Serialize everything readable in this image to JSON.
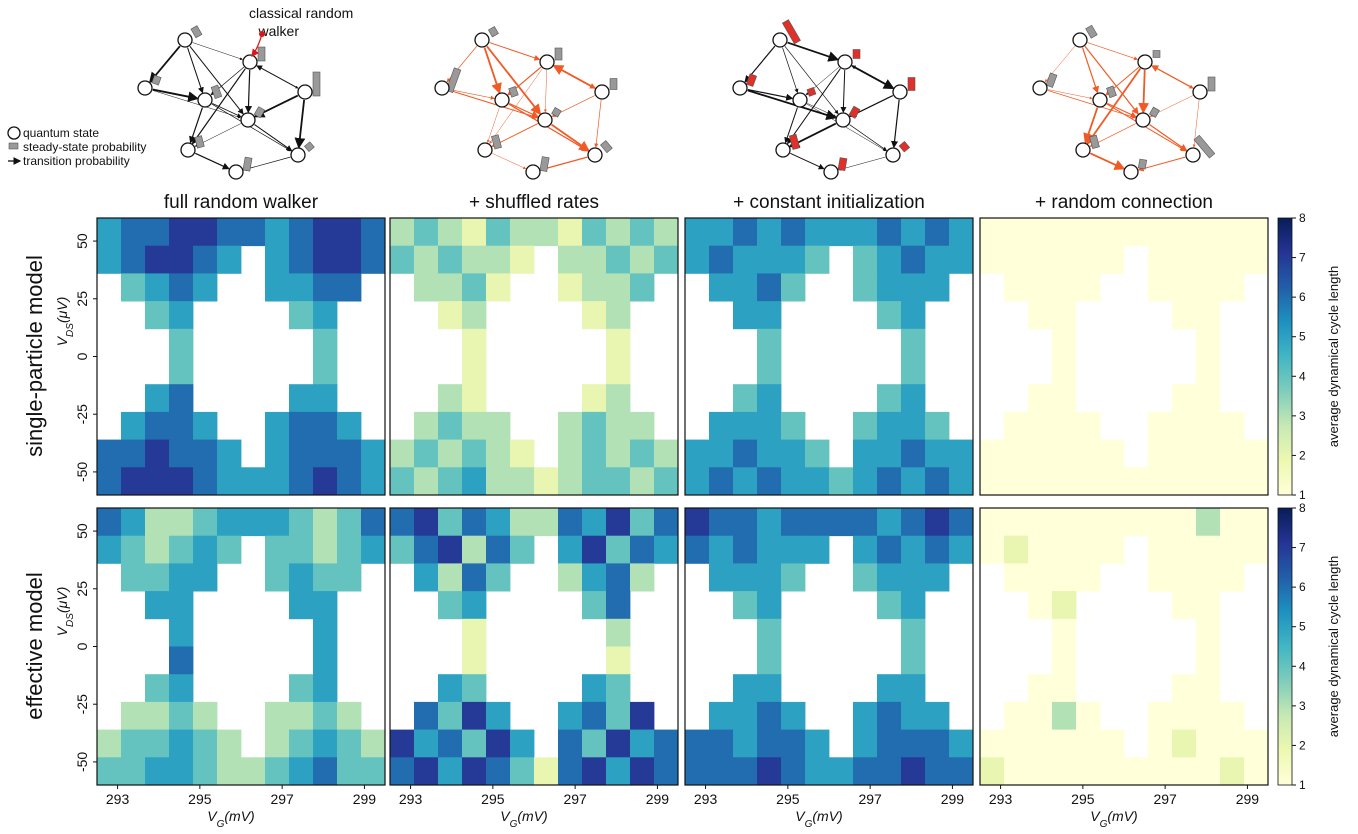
{
  "diagram": {
    "annotation": [
      "classical random",
      "walker"
    ],
    "legend": [
      "quantum state",
      "steady-state probability",
      "transition probability"
    ]
  },
  "row_labels": [
    "single-particle model",
    "effective model"
  ],
  "colorbars": [
    {
      "label": "average dynamical cycle length",
      "colormap": "YlGnBu",
      "lim": [
        1,
        8
      ],
      "ticks": [
        1,
        2,
        3,
        4,
        5,
        6,
        7,
        8
      ]
    },
    {
      "label": "average dynamical cycle length",
      "colormap": "YlGnBu",
      "lim": [
        1,
        8
      ],
      "ticks": [
        1,
        2,
        3,
        4,
        5,
        6,
        7,
        8
      ]
    }
  ],
  "chart_data": [
    {
      "type": "heatmap",
      "title": "full random walker",
      "y_label": [
        "V",
        "DS",
        "(μV)"
      ],
      "xlim": [
        292.5,
        299.5
      ],
      "ylim": [
        -60,
        60
      ],
      "yticks": [
        -50,
        -25,
        0,
        25,
        50
      ],
      "z": [
        [
          5,
          6,
          6,
          7,
          7,
          6,
          6,
          5,
          6,
          7,
          7,
          6
        ],
        [
          5,
          6,
          7,
          7,
          6,
          5,
          null,
          5,
          6,
          7,
          7,
          6
        ],
        [
          null,
          4,
          5,
          6,
          5,
          null,
          null,
          5,
          5,
          6,
          6,
          null
        ],
        [
          null,
          null,
          4,
          5,
          null,
          null,
          null,
          null,
          4,
          5,
          null,
          null
        ],
        [
          null,
          null,
          null,
          4,
          null,
          null,
          null,
          null,
          null,
          4,
          null,
          null
        ],
        [
          null,
          null,
          null,
          4,
          null,
          null,
          null,
          null,
          null,
          4,
          null,
          null
        ],
        [
          null,
          null,
          5,
          6,
          null,
          null,
          null,
          null,
          5,
          5,
          null,
          null
        ],
        [
          null,
          5,
          6,
          6,
          5,
          null,
          null,
          5,
          6,
          6,
          5,
          null
        ],
        [
          6,
          6,
          7,
          6,
          6,
          5,
          null,
          5,
          6,
          6,
          6,
          5
        ],
        [
          6,
          7,
          7,
          7,
          6,
          5,
          5,
          5,
          6,
          7,
          6,
          5
        ]
      ]
    },
    {
      "type": "heatmap",
      "title": "+ shuffled rates",
      "xlim": [
        292.5,
        299.5
      ],
      "ylim": [
        -60,
        60
      ],
      "z": [
        [
          3,
          4,
          3,
          2,
          4,
          3,
          3,
          2,
          4,
          3,
          4,
          3
        ],
        [
          4,
          3,
          4,
          3,
          3,
          2,
          null,
          3,
          3,
          4,
          3,
          4
        ],
        [
          null,
          3,
          3,
          4,
          2,
          null,
          null,
          2,
          3,
          3,
          4,
          null
        ],
        [
          null,
          null,
          2,
          3,
          null,
          null,
          null,
          null,
          2,
          3,
          null,
          null
        ],
        [
          null,
          null,
          null,
          2,
          null,
          null,
          null,
          null,
          null,
          2,
          null,
          null
        ],
        [
          null,
          null,
          null,
          2,
          null,
          null,
          null,
          null,
          null,
          2,
          null,
          null
        ],
        [
          null,
          null,
          3,
          2,
          null,
          null,
          null,
          null,
          2,
          3,
          null,
          null
        ],
        [
          null,
          3,
          4,
          3,
          3,
          null,
          null,
          3,
          4,
          3,
          3,
          null
        ],
        [
          3,
          4,
          3,
          4,
          3,
          2,
          null,
          3,
          4,
          3,
          4,
          3
        ],
        [
          4,
          3,
          4,
          5,
          3,
          3,
          2,
          3,
          4,
          4,
          3,
          4
        ]
      ]
    },
    {
      "type": "heatmap",
      "title": "+ constant initialization",
      "xlim": [
        292.5,
        299.5
      ],
      "ylim": [
        -60,
        60
      ],
      "z": [
        [
          5,
          5,
          6,
          5,
          6,
          5,
          5,
          5,
          6,
          5,
          6,
          5
        ],
        [
          5,
          6,
          5,
          5,
          5,
          4,
          null,
          4,
          5,
          6,
          5,
          5
        ],
        [
          null,
          5,
          5,
          6,
          4,
          null,
          null,
          4,
          5,
          5,
          5,
          null
        ],
        [
          null,
          null,
          5,
          5,
          null,
          null,
          null,
          null,
          4,
          5,
          null,
          null
        ],
        [
          null,
          null,
          null,
          4,
          null,
          null,
          null,
          null,
          null,
          4,
          null,
          null
        ],
        [
          null,
          null,
          null,
          4,
          null,
          null,
          null,
          null,
          null,
          4,
          null,
          null
        ],
        [
          null,
          null,
          4,
          5,
          null,
          null,
          null,
          null,
          4,
          5,
          null,
          null
        ],
        [
          null,
          5,
          5,
          5,
          4,
          null,
          null,
          4,
          5,
          5,
          4,
          null
        ],
        [
          5,
          5,
          6,
          5,
          5,
          4,
          null,
          5,
          5,
          6,
          5,
          5
        ],
        [
          5,
          6,
          5,
          6,
          5,
          5,
          4,
          5,
          6,
          5,
          6,
          5
        ]
      ]
    },
    {
      "type": "heatmap",
      "title": "+ random connection",
      "xlim": [
        292.5,
        299.5
      ],
      "ylim": [
        -60,
        60
      ],
      "z": [
        [
          1,
          1,
          1,
          1,
          1,
          1,
          1,
          1,
          1,
          1,
          1,
          1
        ],
        [
          1,
          1,
          1,
          1,
          1,
          1,
          null,
          1,
          1,
          1,
          1,
          1
        ],
        [
          null,
          1,
          1,
          1,
          1,
          null,
          null,
          1,
          1,
          1,
          1,
          null
        ],
        [
          null,
          null,
          1,
          1,
          null,
          null,
          null,
          null,
          1,
          1,
          null,
          null
        ],
        [
          null,
          null,
          null,
          1,
          null,
          null,
          null,
          null,
          null,
          1,
          null,
          null
        ],
        [
          null,
          null,
          null,
          1,
          null,
          null,
          null,
          null,
          null,
          1,
          null,
          null
        ],
        [
          null,
          null,
          1,
          1,
          null,
          null,
          null,
          null,
          1,
          1,
          null,
          null
        ],
        [
          null,
          1,
          1,
          1,
          1,
          null,
          null,
          1,
          1,
          1,
          1,
          null
        ],
        [
          1,
          1,
          1,
          1,
          1,
          1,
          null,
          1,
          1,
          1,
          1,
          1
        ],
        [
          1,
          1,
          1,
          1,
          1,
          1,
          1,
          1,
          1,
          1,
          1,
          1
        ]
      ]
    },
    {
      "type": "heatmap",
      "y_label": [
        "V",
        "DS",
        "(μV)"
      ],
      "x_label": [
        "V",
        "G",
        "(mV)"
      ],
      "xlim": [
        292.5,
        299.5
      ],
      "ylim": [
        -60,
        60
      ],
      "xticks": [
        293,
        295,
        297,
        299
      ],
      "yticks": [
        -50,
        -25,
        0,
        25,
        50
      ],
      "z": [
        [
          6,
          5,
          3,
          3,
          4,
          5,
          5,
          5,
          4,
          3,
          4,
          6
        ],
        [
          5,
          4,
          3,
          4,
          5,
          4,
          null,
          4,
          4,
          3,
          4,
          5
        ],
        [
          null,
          4,
          4,
          5,
          5,
          null,
          null,
          4,
          5,
          4,
          4,
          null
        ],
        [
          null,
          null,
          5,
          5,
          null,
          null,
          null,
          null,
          5,
          5,
          null,
          null
        ],
        [
          null,
          null,
          null,
          5,
          null,
          null,
          null,
          null,
          null,
          5,
          null,
          null
        ],
        [
          null,
          null,
          null,
          6,
          null,
          null,
          null,
          null,
          null,
          5,
          null,
          null
        ],
        [
          null,
          null,
          4,
          5,
          null,
          null,
          null,
          null,
          4,
          5,
          null,
          null
        ],
        [
          null,
          3,
          3,
          4,
          3,
          null,
          null,
          3,
          3,
          4,
          3,
          null
        ],
        [
          3,
          4,
          4,
          5,
          4,
          3,
          null,
          3,
          4,
          5,
          4,
          3
        ],
        [
          4,
          4,
          5,
          5,
          4,
          3,
          3,
          4,
          5,
          6,
          4,
          4
        ]
      ]
    },
    {
      "type": "heatmap",
      "x_label": [
        "V",
        "G",
        "(mV)"
      ],
      "xlim": [
        292.5,
        299.5
      ],
      "ylim": [
        -60,
        60
      ],
      "xticks": [
        293,
        295,
        297,
        299
      ],
      "z": [
        [
          6,
          7,
          4,
          6,
          5,
          3,
          3,
          6,
          5,
          7,
          4,
          6
        ],
        [
          4,
          6,
          7,
          3,
          6,
          4,
          null,
          5,
          7,
          4,
          6,
          5
        ],
        [
          null,
          5,
          3,
          6,
          4,
          null,
          null,
          3,
          5,
          6,
          3,
          null
        ],
        [
          null,
          null,
          4,
          5,
          null,
          null,
          null,
          null,
          4,
          6,
          null,
          null
        ],
        [
          null,
          null,
          null,
          2,
          null,
          null,
          null,
          null,
          null,
          3,
          null,
          null
        ],
        [
          null,
          null,
          null,
          2,
          null,
          null,
          null,
          null,
          null,
          2,
          null,
          null
        ],
        [
          null,
          null,
          5,
          4,
          null,
          null,
          null,
          null,
          5,
          4,
          null,
          null
        ],
        [
          null,
          6,
          4,
          7,
          5,
          null,
          null,
          5,
          6,
          4,
          7,
          null
        ],
        [
          7,
          5,
          6,
          4,
          7,
          5,
          null,
          6,
          4,
          7,
          5,
          6
        ],
        [
          6,
          7,
          5,
          7,
          6,
          4,
          2,
          6,
          7,
          5,
          7,
          6
        ]
      ]
    },
    {
      "type": "heatmap",
      "x_label": [
        "V",
        "G",
        "(mV)"
      ],
      "xlim": [
        292.5,
        299.5
      ],
      "ylim": [
        -60,
        60
      ],
      "xticks": [
        293,
        295,
        297,
        299
      ],
      "z": [
        [
          7,
          6,
          6,
          5,
          6,
          6,
          6,
          6,
          5,
          6,
          7,
          6
        ],
        [
          6,
          5,
          6,
          5,
          5,
          5,
          null,
          5,
          6,
          5,
          6,
          5
        ],
        [
          null,
          5,
          5,
          5,
          4,
          null,
          null,
          4,
          5,
          5,
          5,
          null
        ],
        [
          null,
          null,
          4,
          5,
          null,
          null,
          null,
          null,
          4,
          5,
          null,
          null
        ],
        [
          null,
          null,
          null,
          4,
          null,
          null,
          null,
          null,
          null,
          4,
          null,
          null
        ],
        [
          null,
          null,
          null,
          4,
          null,
          null,
          null,
          null,
          null,
          4,
          null,
          null
        ],
        [
          null,
          null,
          5,
          5,
          null,
          null,
          null,
          null,
          5,
          5,
          null,
          null
        ],
        [
          null,
          5,
          5,
          6,
          5,
          null,
          null,
          5,
          6,
          5,
          5,
          null
        ],
        [
          6,
          6,
          5,
          6,
          6,
          5,
          null,
          5,
          6,
          6,
          6,
          5
        ],
        [
          6,
          6,
          6,
          7,
          6,
          5,
          5,
          6,
          6,
          7,
          6,
          6
        ]
      ]
    },
    {
      "type": "heatmap",
      "x_label": [
        "V",
        "G",
        "(mV)"
      ],
      "xlim": [
        292.5,
        299.5
      ],
      "ylim": [
        -60,
        60
      ],
      "xticks": [
        293,
        295,
        297,
        299
      ],
      "z": [
        [
          1,
          1,
          1,
          1,
          1,
          1,
          1,
          1,
          1,
          3,
          1,
          1
        ],
        [
          1,
          2,
          1,
          1,
          1,
          1,
          null,
          1,
          1,
          1,
          1,
          1
        ],
        [
          null,
          1,
          1,
          1,
          1,
          null,
          null,
          1,
          1,
          1,
          1,
          null
        ],
        [
          null,
          null,
          1,
          2,
          null,
          null,
          null,
          null,
          1,
          1,
          null,
          null
        ],
        [
          null,
          null,
          null,
          1,
          null,
          null,
          null,
          null,
          null,
          1,
          null,
          null
        ],
        [
          null,
          null,
          null,
          1,
          null,
          null,
          null,
          null,
          null,
          1,
          null,
          null
        ],
        [
          null,
          null,
          1,
          1,
          null,
          null,
          null,
          null,
          1,
          1,
          null,
          null
        ],
        [
          null,
          1,
          1,
          3,
          1,
          null,
          null,
          1,
          1,
          1,
          1,
          null
        ],
        [
          1,
          1,
          1,
          1,
          1,
          1,
          null,
          1,
          2,
          1,
          1,
          1
        ],
        [
          2,
          1,
          1,
          1,
          1,
          1,
          1,
          1,
          1,
          1,
          2,
          1
        ]
      ]
    }
  ]
}
